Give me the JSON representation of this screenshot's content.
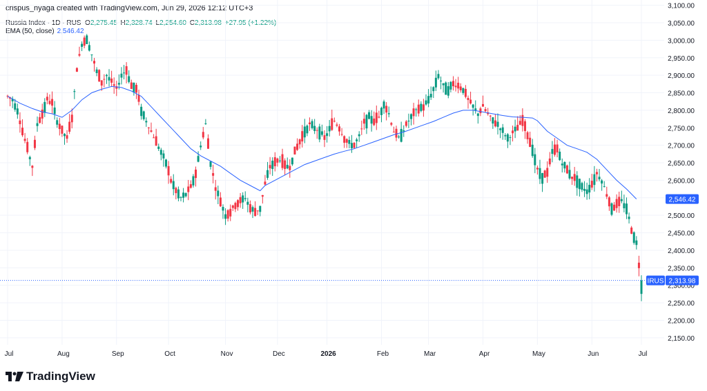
{
  "header": {
    "text": "crispus_nyaga created with TradingView.com, Jun 29, 2026 12:12 UTC+3"
  },
  "legend": {
    "symbol": "Russia Index · 1D · RUS",
    "o_label": "O",
    "o_value": "2,275.45",
    "h_label": "H",
    "h_value": "2,328.74",
    "l_label": "L",
    "l_value": "2,254.60",
    "c_label": "C",
    "c_value": "2,313.98",
    "change": "+27.95 (+1.22%)",
    "ema_label": "EMA (50, close)",
    "ema_value": "2,546.42"
  },
  "logo": {
    "text": "TradingView"
  },
  "colors": {
    "up": "#089981",
    "down": "#f23645",
    "ema": "#2962ff",
    "grid": "#f0f3fa",
    "axis_text": "#131722"
  },
  "chart_data": {
    "type": "candlestick",
    "ylim": [
      2130,
      3115
    ],
    "y_ticks": [
      "3,100.00",
      "3,050.00",
      "3,000.00",
      "2,950.00",
      "2,900.00",
      "2,850.00",
      "2,800.00",
      "2,750.00",
      "2,700.00",
      "2,650.00",
      "2,600.00",
      "2,550.00",
      "2,500.00",
      "2,450.00",
      "2,400.00",
      "2,350.00",
      "2,300.00",
      "2,250.00",
      "2,200.00",
      "2,150.00"
    ],
    "x_ticks": [
      "Jul",
      "Aug",
      "Sep",
      "Oct",
      "Nov",
      "Dec",
      "2026",
      "Feb",
      "Mar",
      "Apr",
      "May",
      "Jun",
      "Jul"
    ],
    "x_tick_days": [
      0,
      22,
      44,
      65,
      88,
      109,
      129,
      151,
      170,
      192,
      214,
      236,
      256
    ],
    "last_price": {
      "label": "IRUS",
      "value": "2,313.98",
      "y": 2313.98
    },
    "ema_label": {
      "value": "2,546.42",
      "y": 2546.42
    },
    "close_path": [
      [
        0,
        2840
      ],
      [
        2,
        2830
      ],
      [
        4,
        2800
      ],
      [
        6,
        2740
      ],
      [
        8,
        2690
      ],
      [
        10,
        2640
      ],
      [
        12,
        2760
      ],
      [
        14,
        2790
      ],
      [
        16,
        2830
      ],
      [
        18,
        2820
      ],
      [
        20,
        2770
      ],
      [
        22,
        2740
      ],
      [
        24,
        2720
      ],
      [
        26,
        2780
      ],
      [
        28,
        2920
      ],
      [
        30,
        2990
      ],
      [
        32,
        3005
      ],
      [
        34,
        2960
      ],
      [
        36,
        2910
      ],
      [
        38,
        2880
      ],
      [
        40,
        2900
      ],
      [
        42,
        2880
      ],
      [
        44,
        2860
      ],
      [
        46,
        2900
      ],
      [
        48,
        2915
      ],
      [
        50,
        2870
      ],
      [
        52,
        2860
      ],
      [
        54,
        2800
      ],
      [
        56,
        2770
      ],
      [
        58,
        2740
      ],
      [
        60,
        2710
      ],
      [
        62,
        2680
      ],
      [
        64,
        2650
      ],
      [
        66,
        2600
      ],
      [
        68,
        2570
      ],
      [
        70,
        2550
      ],
      [
        72,
        2560
      ],
      [
        74,
        2580
      ],
      [
        76,
        2620
      ],
      [
        78,
        2700
      ],
      [
        80,
        2760
      ],
      [
        82,
        2650
      ],
      [
        84,
        2580
      ],
      [
        86,
        2540
      ],
      [
        88,
        2500
      ],
      [
        90,
        2510
      ],
      [
        92,
        2530
      ],
      [
        94,
        2540
      ],
      [
        96,
        2550
      ],
      [
        98,
        2520
      ],
      [
        100,
        2510
      ],
      [
        102,
        2520
      ],
      [
        104,
        2590
      ],
      [
        106,
        2640
      ],
      [
        108,
        2650
      ],
      [
        110,
        2660
      ],
      [
        112,
        2640
      ],
      [
        114,
        2640
      ],
      [
        116,
        2680
      ],
      [
        118,
        2710
      ],
      [
        120,
        2740
      ],
      [
        122,
        2760
      ],
      [
        124,
        2750
      ],
      [
        126,
        2740
      ],
      [
        128,
        2720
      ],
      [
        130,
        2745
      ],
      [
        132,
        2770
      ],
      [
        134,
        2750
      ],
      [
        136,
        2720
      ],
      [
        138,
        2705
      ],
      [
        140,
        2700
      ],
      [
        142,
        2725
      ],
      [
        144,
        2765
      ],
      [
        146,
        2780
      ],
      [
        148,
        2770
      ],
      [
        150,
        2780
      ],
      [
        152,
        2820
      ],
      [
        154,
        2790
      ],
      [
        156,
        2740
      ],
      [
        158,
        2720
      ],
      [
        160,
        2745
      ],
      [
        162,
        2770
      ],
      [
        164,
        2790
      ],
      [
        166,
        2805
      ],
      [
        168,
        2810
      ],
      [
        170,
        2830
      ],
      [
        172,
        2860
      ],
      [
        174,
        2900
      ],
      [
        176,
        2870
      ],
      [
        178,
        2860
      ],
      [
        180,
        2875
      ],
      [
        182,
        2870
      ],
      [
        184,
        2860
      ],
      [
        186,
        2830
      ],
      [
        188,
        2810
      ],
      [
        190,
        2790
      ],
      [
        192,
        2810
      ],
      [
        194,
        2790
      ],
      [
        196,
        2770
      ],
      [
        198,
        2760
      ],
      [
        200,
        2740
      ],
      [
        202,
        2720
      ],
      [
        204,
        2735
      ],
      [
        206,
        2750
      ],
      [
        208,
        2770
      ],
      [
        210,
        2730
      ],
      [
        212,
        2690
      ],
      [
        214,
        2630
      ],
      [
        216,
        2610
      ],
      [
        218,
        2620
      ],
      [
        220,
        2680
      ],
      [
        222,
        2690
      ],
      [
        224,
        2650
      ],
      [
        226,
        2630
      ],
      [
        228,
        2610
      ],
      [
        230,
        2600
      ],
      [
        232,
        2580
      ],
      [
        234,
        2570
      ],
      [
        236,
        2590
      ],
      [
        238,
        2620
      ],
      [
        240,
        2600
      ],
      [
        242,
        2560
      ],
      [
        244,
        2520
      ],
      [
        246,
        2530
      ],
      [
        248,
        2540
      ],
      [
        250,
        2520
      ],
      [
        252,
        2460
      ],
      [
        254,
        2420
      ],
      [
        256,
        2300
      ]
    ],
    "ema_path": [
      [
        0,
        2840
      ],
      [
        5,
        2820
      ],
      [
        10,
        2805
      ],
      [
        14,
        2795
      ],
      [
        18,
        2790
      ],
      [
        22,
        2780
      ],
      [
        26,
        2800
      ],
      [
        30,
        2830
      ],
      [
        34,
        2850
      ],
      [
        38,
        2860
      ],
      [
        42,
        2868
      ],
      [
        46,
        2865
      ],
      [
        50,
        2855
      ],
      [
        54,
        2840
      ],
      [
        58,
        2810
      ],
      [
        62,
        2780
      ],
      [
        66,
        2750
      ],
      [
        70,
        2720
      ],
      [
        74,
        2690
      ],
      [
        78,
        2670
      ],
      [
        82,
        2655
      ],
      [
        86,
        2640
      ],
      [
        90,
        2620
      ],
      [
        94,
        2600
      ],
      [
        98,
        2585
      ],
      [
        102,
        2570
      ],
      [
        104,
        2585
      ],
      [
        108,
        2600
      ],
      [
        112,
        2615
      ],
      [
        116,
        2630
      ],
      [
        120,
        2645
      ],
      [
        124,
        2655
      ],
      [
        128,
        2665
      ],
      [
        132,
        2675
      ],
      [
        136,
        2683
      ],
      [
        140,
        2690
      ],
      [
        144,
        2700
      ],
      [
        148,
        2710
      ],
      [
        152,
        2720
      ],
      [
        156,
        2730
      ],
      [
        160,
        2738
      ],
      [
        164,
        2748
      ],
      [
        168,
        2758
      ],
      [
        172,
        2768
      ],
      [
        176,
        2780
      ],
      [
        180,
        2792
      ],
      [
        184,
        2800
      ],
      [
        188,
        2800
      ],
      [
        192,
        2795
      ],
      [
        196,
        2790
      ],
      [
        200,
        2785
      ],
      [
        204,
        2781
      ],
      [
        208,
        2780
      ],
      [
        212,
        2778
      ],
      [
        214,
        2770
      ],
      [
        218,
        2740
      ],
      [
        222,
        2720
      ],
      [
        226,
        2700
      ],
      [
        230,
        2690
      ],
      [
        234,
        2680
      ],
      [
        238,
        2660
      ],
      [
        242,
        2630
      ],
      [
        246,
        2600
      ],
      [
        250,
        2575
      ],
      [
        254,
        2546.42
      ]
    ]
  }
}
